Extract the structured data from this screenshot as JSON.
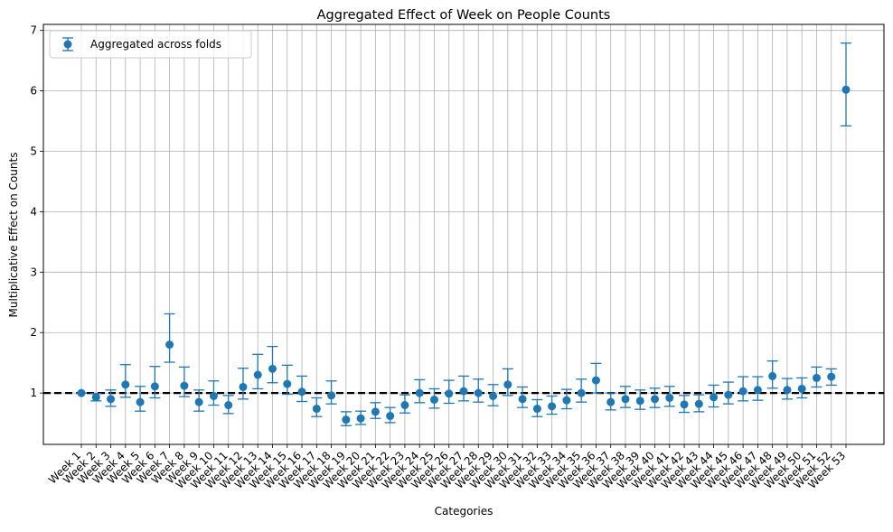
{
  "chart_data": {
    "type": "scatter",
    "title": "Aggregated Effect of Week on People Counts",
    "xlabel": "Categories",
    "ylabel": "Multiplicative Effect on Counts",
    "ylim": [
      0.15,
      7.1
    ],
    "yticks": [
      1,
      2,
      3,
      4,
      5,
      6,
      7
    ],
    "grid": true,
    "legend_position": "top-left",
    "reference_line": 1,
    "categories": [
      "Week 1",
      "Week 2",
      "Week 3",
      "Week 4",
      "Week 5",
      "Week 6",
      "Week 7",
      "Week 8",
      "Week 9",
      "Week 10",
      "Week 11",
      "Week 12",
      "Week 13",
      "Week 14",
      "Week 15",
      "Week 16",
      "Week 17",
      "Week 18",
      "Week 19",
      "Week 20",
      "Week 21",
      "Week 22",
      "Week 23",
      "Week 24",
      "Week 25",
      "Week 26",
      "Week 27",
      "Week 28",
      "Week 29",
      "Week 30",
      "Week 31",
      "Week 32",
      "Week 33",
      "Week 34",
      "Week 35",
      "Week 36",
      "Week 37",
      "Week 38",
      "Week 39",
      "Week 40",
      "Week 41",
      "Week 42",
      "Week 43",
      "Week 44",
      "Week 45",
      "Week 46",
      "Week 47",
      "Week 48",
      "Week 49",
      "Week 50",
      "Week 51",
      "Week 52",
      "Week 53"
    ],
    "series": [
      {
        "name": "Aggregated across folds",
        "color": "#1f77b4",
        "values": [
          1.0,
          0.93,
          0.9,
          1.14,
          0.85,
          1.11,
          1.8,
          1.12,
          0.85,
          0.95,
          0.8,
          1.1,
          1.3,
          1.4,
          1.15,
          1.02,
          0.74,
          0.96,
          0.56,
          0.58,
          0.69,
          0.62,
          0.8,
          1.0,
          0.89,
          0.99,
          1.03,
          1.0,
          0.95,
          1.14,
          0.9,
          0.74,
          0.78,
          0.88,
          1.0,
          1.21,
          0.85,
          0.9,
          0.87,
          0.9,
          0.92,
          0.81,
          0.82,
          0.93,
          0.97,
          1.03,
          1.05,
          1.28,
          1.05,
          1.07,
          1.25,
          1.27,
          6.02
        ],
        "lower": [
          1.0,
          0.87,
          0.78,
          0.93,
          0.7,
          0.92,
          1.51,
          0.94,
          0.7,
          0.8,
          0.66,
          0.9,
          1.07,
          1.17,
          0.98,
          0.86,
          0.61,
          0.82,
          0.46,
          0.48,
          0.58,
          0.51,
          0.67,
          0.84,
          0.75,
          0.83,
          0.87,
          0.85,
          0.79,
          0.96,
          0.76,
          0.61,
          0.65,
          0.74,
          0.85,
          1.0,
          0.72,
          0.76,
          0.73,
          0.76,
          0.78,
          0.68,
          0.69,
          0.77,
          0.82,
          0.87,
          0.88,
          1.08,
          0.9,
          0.92,
          1.1,
          1.13,
          5.42
        ],
        "upper": [
          1.0,
          0.99,
          1.05,
          1.47,
          1.11,
          1.44,
          2.31,
          1.43,
          1.05,
          1.2,
          0.96,
          1.41,
          1.64,
          1.77,
          1.46,
          1.28,
          0.92,
          1.2,
          0.69,
          0.7,
          0.84,
          0.76,
          0.97,
          1.22,
          1.07,
          1.21,
          1.28,
          1.23,
          1.14,
          1.4,
          1.1,
          0.89,
          0.95,
          1.06,
          1.23,
          1.49,
          1.0,
          1.11,
          1.05,
          1.08,
          1.11,
          0.96,
          0.97,
          1.13,
          1.18,
          1.27,
          1.27,
          1.53,
          1.24,
          1.25,
          1.43,
          1.4,
          6.79
        ]
      }
    ]
  }
}
